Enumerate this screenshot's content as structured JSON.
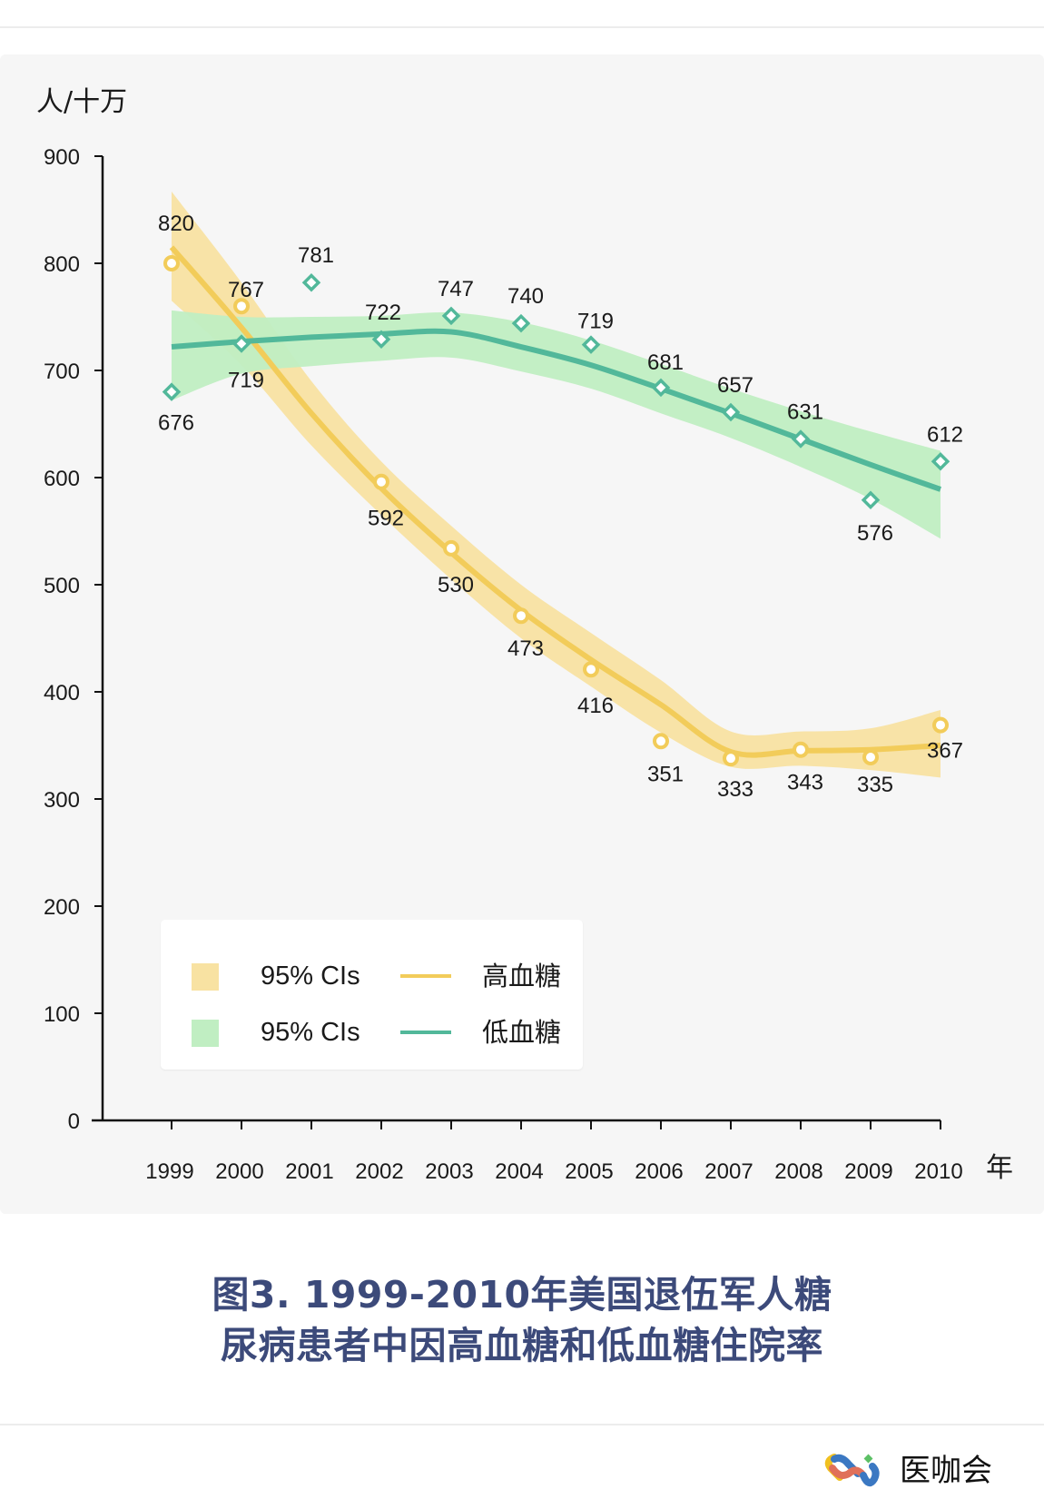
{
  "chart_data": {
    "type": "line",
    "title": "图3. 1999-2010年美国退伍军人糖尿病患者中因高血糖和低血糖住院率",
    "xlabel": "年",
    "ylabel": "人/十万",
    "ylim": [
      0,
      900
    ],
    "yticks": [
      0,
      100,
      200,
      300,
      400,
      500,
      600,
      700,
      800,
      900
    ],
    "categories": [
      "1999",
      "2000",
      "2001",
      "2002",
      "2003",
      "2004",
      "2005",
      "2006",
      "2007",
      "2008",
      "2009",
      "2010"
    ],
    "grid": false,
    "legend_position": "bottom-left",
    "series": [
      {
        "name": "高血糖",
        "color": "#f2cc5a",
        "band_color": "#f8e2a2",
        "marker": "circle",
        "labels": [
          820,
          767,
          null,
          592,
          530,
          473,
          416,
          351,
          333,
          343,
          335,
          367
        ],
        "points": [
          800,
          760,
          null,
          596,
          534,
          471,
          421,
          354,
          338,
          346,
          339,
          369
        ],
        "trend": [
          815,
          740,
          660,
          590,
          530,
          476,
          430,
          388,
          344,
          345,
          346,
          350
        ],
        "ci_lower": [
          765,
          705,
          630,
          565,
          505,
          450,
          405,
          362,
          330,
          331,
          327,
          320
        ],
        "ci_upper": [
          867,
          782,
          690,
          615,
          555,
          500,
          455,
          411,
          363,
          363,
          366,
          383
        ]
      },
      {
        "name": "低血糖",
        "color": "#52b89a",
        "band_color": "#c0eec2",
        "marker": "diamond",
        "labels": [
          676,
          719,
          781,
          null,
          747,
          740,
          719,
          681,
          657,
          631,
          576,
          612
        ],
        "points": [
          680,
          725,
          782,
          729,
          751,
          744,
          724,
          684,
          661,
          636,
          579,
          615
        ],
        "trend": [
          722,
          727,
          731,
          734,
          736,
          722,
          705,
          683,
          660,
          636,
          612,
          589
        ],
        "ci_lower": [
          672,
          697,
          704,
          709,
          712,
          699,
          683,
          660,
          637,
          610,
          580,
          543
        ],
        "ci_upper": [
          756,
          750,
          750,
          751,
          754,
          745,
          728,
          706,
          683,
          662,
          643,
          625
        ]
      }
    ],
    "point_labels_2002_high": 592,
    "point_labels_2002_low": 722
  },
  "legend": {
    "items": [
      {
        "swatch_label": "95% CIs",
        "series_label": "高血糖",
        "swatch_color": "#f8e2a2",
        "line_color": "#f2cc5a"
      },
      {
        "swatch_label": "95% CIs",
        "series_label": "低血糖",
        "swatch_color": "#c0eec2",
        "line_color": "#52b89a"
      }
    ]
  },
  "caption": {
    "line1": "图3. 1999-2010年美国退伍军人糖",
    "line2": "尿病患者中因高血糖和低血糖住院率"
  },
  "brand": {
    "name": "医咖会",
    "logo_icon": "infinity-link-icon"
  }
}
